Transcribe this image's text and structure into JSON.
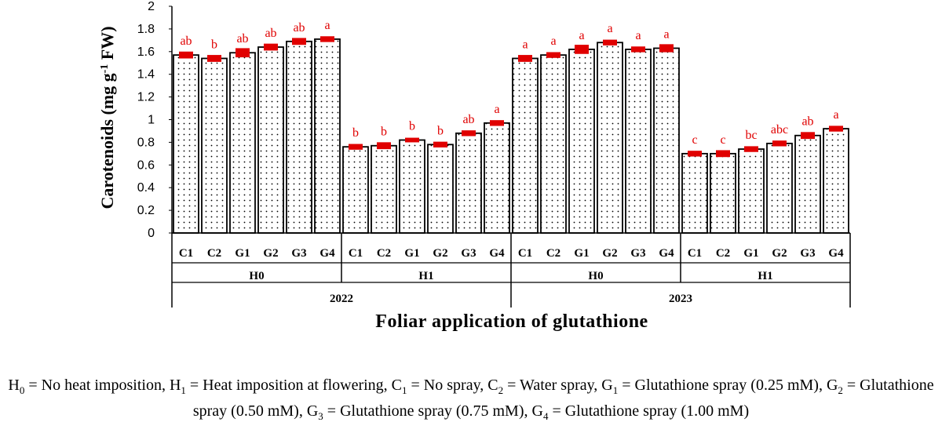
{
  "chart_data": {
    "type": "bar",
    "ylabel": "Carotenoids (mg g-1 FW)",
    "ylabel_parts": {
      "main": "Carotenoids (mg g",
      "sup": "-1",
      "tail": " FW)"
    },
    "xlabel": "Foliar application of glutathione",
    "ylim": [
      0,
      2
    ],
    "yticks": [
      "0",
      "0.2",
      "0.4",
      "0.6",
      "0.8",
      "1",
      "1.2",
      "1.4",
      "1.6",
      "1.8",
      "2"
    ],
    "grid": false,
    "years": [
      {
        "label": "2022",
        "groups": [
          {
            "label": "H0",
            "bars": [
              {
                "cat": "C1",
                "value": 1.57,
                "err": 0.02,
                "sig": "ab"
              },
              {
                "cat": "C2",
                "value": 1.54,
                "err": 0.02,
                "sig": "b"
              },
              {
                "cat": "G1",
                "value": 1.59,
                "err": 0.03,
                "sig": "ab"
              },
              {
                "cat": "G2",
                "value": 1.64,
                "err": 0.02,
                "sig": "ab"
              },
              {
                "cat": "G3",
                "value": 1.69,
                "err": 0.02,
                "sig": "ab"
              },
              {
                "cat": "G4",
                "value": 1.71,
                "err": 0.015,
                "sig": "a"
              }
            ]
          },
          {
            "label": "H1",
            "bars": [
              {
                "cat": "C1",
                "value": 0.76,
                "err": 0.015,
                "sig": "b"
              },
              {
                "cat": "C2",
                "value": 0.77,
                "err": 0.02,
                "sig": "b"
              },
              {
                "cat": "G1",
                "value": 0.82,
                "err": 0.01,
                "sig": "b"
              },
              {
                "cat": "G2",
                "value": 0.78,
                "err": 0.015,
                "sig": "b"
              },
              {
                "cat": "G3",
                "value": 0.88,
                "err": 0.015,
                "sig": "ab"
              },
              {
                "cat": "G4",
                "value": 0.97,
                "err": 0.015,
                "sig": "a"
              }
            ]
          }
        ]
      },
      {
        "label": "2023",
        "groups": [
          {
            "label": "H0",
            "bars": [
              {
                "cat": "C1",
                "value": 1.54,
                "err": 0.02,
                "sig": "a"
              },
              {
                "cat": "C2",
                "value": 1.57,
                "err": 0.015,
                "sig": "a"
              },
              {
                "cat": "G1",
                "value": 1.62,
                "err": 0.03,
                "sig": "a"
              },
              {
                "cat": "G2",
                "value": 1.68,
                "err": 0.015,
                "sig": "a"
              },
              {
                "cat": "G3",
                "value": 1.62,
                "err": 0.015,
                "sig": "a"
              },
              {
                "cat": "G4",
                "value": 1.63,
                "err": 0.025,
                "sig": "a"
              }
            ]
          },
          {
            "label": "H1",
            "bars": [
              {
                "cat": "C1",
                "value": 0.7,
                "err": 0.015,
                "sig": "c"
              },
              {
                "cat": "C2",
                "value": 0.7,
                "err": 0.02,
                "sig": "c"
              },
              {
                "cat": "G1",
                "value": 0.74,
                "err": 0.015,
                "sig": "bc"
              },
              {
                "cat": "G2",
                "value": 0.79,
                "err": 0.015,
                "sig": "abc"
              },
              {
                "cat": "G3",
                "value": 0.86,
                "err": 0.02,
                "sig": "ab"
              },
              {
                "cat": "G4",
                "value": 0.92,
                "err": 0.015,
                "sig": "a"
              }
            ]
          }
        ]
      }
    ],
    "colors": {
      "bar_fill": "#ffffff",
      "bar_stroke": "#000000",
      "dots": "#000000",
      "error_bar": "#e00000",
      "sig_letters": "#e00000"
    }
  },
  "caption": {
    "segments": [
      {
        "t": "H"
      },
      {
        "sub": "0"
      },
      {
        "t": " = No heat imposition, H"
      },
      {
        "sub": "1"
      },
      {
        "t": " = Heat imposition at flowering, C"
      },
      {
        "sub": "1"
      },
      {
        "t": " = No spray, C"
      },
      {
        "sub": "2"
      },
      {
        "t": " = Water spray, G"
      },
      {
        "sub": "1"
      },
      {
        "t": " = Glutathione spray (0.25 mM), G"
      },
      {
        "sub": "2"
      },
      {
        "t": " = Glutathione spray (0.50 mM), G"
      },
      {
        "sub": "3"
      },
      {
        "t": " = Glutathione spray (0.75 mM), G"
      },
      {
        "sub": "4"
      },
      {
        "t": " = Glutathione spray (1.00 mM)"
      }
    ]
  }
}
